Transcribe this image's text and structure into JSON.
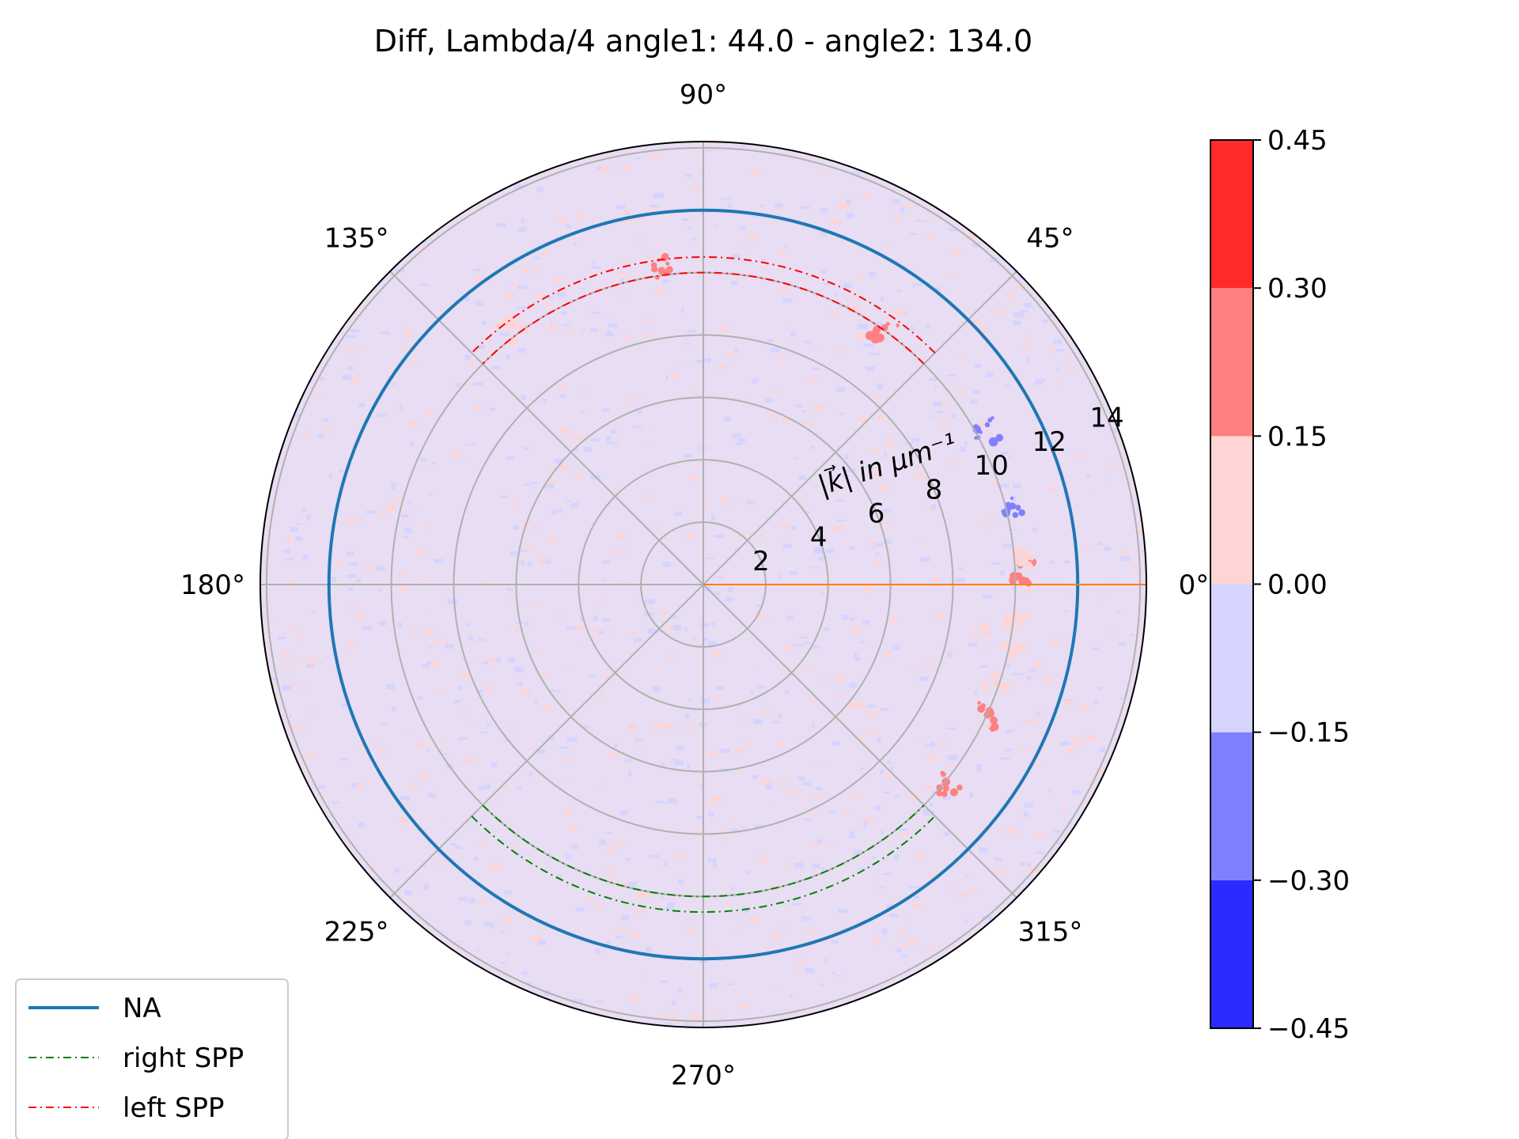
{
  "chart_data": {
    "type": "heatmap",
    "projection": "polar",
    "title": "Diff, Lambda/4 angle1: 44.0 - angle2: 134.0",
    "radial_label": "|k⃗| in μm⁻¹",
    "r_lim": [
      0,
      14.2
    ],
    "r_ticks": [
      2,
      4,
      6,
      8,
      10,
      12,
      14
    ],
    "r_tick_labels": [
      "2",
      "4",
      "6",
      "8",
      "10",
      "12",
      "14"
    ],
    "theta_ticks": [
      0,
      45,
      90,
      135,
      180,
      225,
      270,
      315
    ],
    "theta_tick_labels": [
      "0°",
      "45°",
      "90°",
      "135°",
      "180°",
      "225°",
      "270°",
      "315°"
    ],
    "grid": true,
    "background_level": "slightly negative / slightly positive noise between -0.15 and 0.15",
    "series": [
      {
        "name": "NA",
        "style": "solid",
        "color": "#1f77b4",
        "r": 12.0,
        "theta_range": [
          0,
          360
        ]
      },
      {
        "name": "right SPP",
        "style": "dash-dot",
        "color": "#008000",
        "r": [
          10.0,
          10.5
        ],
        "theta_range": [
          225,
          315
        ]
      },
      {
        "name": "left SPP",
        "style": "dash-dot",
        "color": "#ff0000",
        "r": [
          10.0,
          10.5
        ],
        "theta_range": [
          45,
          135
        ]
      },
      {
        "style": "solid",
        "color": "#ff7f0e",
        "theta": 0,
        "r_range": [
          0,
          14.2
        ]
      }
    ],
    "colorbar": {
      "levels": [
        -0.45,
        -0.3,
        -0.15,
        0.0,
        0.15,
        0.3,
        0.45
      ],
      "tick_labels": [
        "−0.45",
        "−0.30",
        "−0.15",
        "0.00",
        "0.15",
        "0.30",
        "0.45"
      ],
      "colors": [
        "#2b2bff",
        "#8080ff",
        "#d4d4ff",
        "#ffd4d4",
        "#ff8080",
        "#ff2b2b"
      ]
    },
    "legend": {
      "placement": "lower-left",
      "entries": [
        "NA",
        "right SPP",
        "left SPP"
      ]
    }
  }
}
